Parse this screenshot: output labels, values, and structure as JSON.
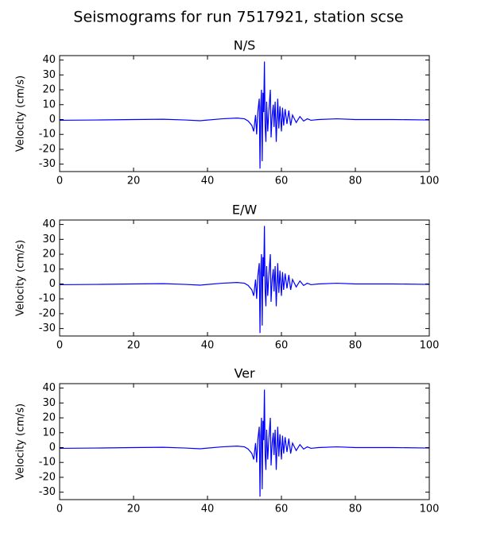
{
  "title": "Seismograms for run 7517921, station scse",
  "chart_data": [
    {
      "type": "line",
      "title": "N/S",
      "ylabel": "Velocity (cm/s)",
      "color": "#0000ff",
      "xlim": [
        0,
        100
      ],
      "xticks": [
        0,
        20,
        40,
        60,
        80,
        100
      ],
      "ylim": [
        -35,
        43
      ],
      "yticks": [
        -30,
        -20,
        -10,
        0,
        10,
        20,
        30,
        40
      ],
      "x": [
        0,
        10,
        20,
        28,
        34,
        38,
        44,
        48,
        50,
        51,
        52,
        52.5,
        53,
        53.3,
        53.6,
        54,
        54.2,
        54.4,
        54.6,
        54.8,
        55,
        55.2,
        55.4,
        55.6,
        55.8,
        56,
        56.3,
        56.6,
        57,
        57.2,
        57.5,
        57.8,
        58,
        58.3,
        58.6,
        59,
        59.3,
        59.6,
        60,
        60.3,
        60.6,
        61,
        61.5,
        62,
        62.5,
        63,
        64,
        65,
        66,
        67,
        68,
        70,
        75,
        80,
        90,
        100
      ],
      "values": [
        -0.5,
        -0.3,
        0,
        0.2,
        -0.3,
        -0.8,
        0.5,
        1,
        0.5,
        -1,
        -4,
        -8,
        3,
        -10,
        5,
        14,
        -33,
        8,
        20,
        -28,
        18,
        5,
        39,
        -5,
        -15,
        12,
        -8,
        6,
        20,
        -12,
        3,
        10,
        -5,
        12,
        -15,
        14,
        -6,
        9,
        -8,
        8,
        -4,
        7,
        -3,
        6,
        -4,
        3,
        -2,
        2,
        -1,
        0.5,
        -0.5,
        0,
        0.5,
        0,
        0,
        -0.3
      ]
    },
    {
      "type": "line",
      "title": "E/W",
      "ylabel": "Velocity (cm/s)",
      "color": "#0000ff",
      "xlim": [
        0,
        100
      ],
      "xticks": [
        0,
        20,
        40,
        60,
        80,
        100
      ],
      "ylim": [
        -35,
        43
      ],
      "yticks": [
        -30,
        -20,
        -10,
        0,
        10,
        20,
        30,
        40
      ],
      "x": [
        0,
        10,
        20,
        28,
        34,
        38,
        44,
        48,
        50,
        51,
        52,
        52.5,
        53,
        53.3,
        53.6,
        54,
        54.2,
        54.4,
        54.6,
        54.8,
        55,
        55.2,
        55.4,
        55.6,
        55.8,
        56,
        56.3,
        56.6,
        57,
        57.2,
        57.5,
        57.8,
        58,
        58.3,
        58.6,
        59,
        59.3,
        59.6,
        60,
        60.3,
        60.6,
        61,
        61.5,
        62,
        62.5,
        63,
        64,
        65,
        66,
        67,
        68,
        70,
        75,
        80,
        90,
        100
      ],
      "values": [
        -0.5,
        -0.3,
        0,
        0.2,
        -0.3,
        -0.8,
        0.5,
        1,
        0.5,
        -1,
        -4,
        -8,
        3,
        -10,
        5,
        14,
        -33,
        8,
        20,
        -28,
        18,
        5,
        39,
        -5,
        -15,
        12,
        -8,
        6,
        20,
        -12,
        3,
        10,
        -5,
        12,
        -15,
        14,
        -6,
        9,
        -8,
        8,
        -4,
        7,
        -3,
        6,
        -4,
        3,
        -2,
        2,
        -1,
        0.5,
        -0.5,
        0,
        0.5,
        0,
        0,
        -0.3
      ]
    },
    {
      "type": "line",
      "title": "Ver",
      "ylabel": "Velocity (cm/s)",
      "color": "#0000ff",
      "xlim": [
        0,
        100
      ],
      "xticks": [
        0,
        20,
        40,
        60,
        80,
        100
      ],
      "ylim": [
        -35,
        43
      ],
      "yticks": [
        -30,
        -20,
        -10,
        0,
        10,
        20,
        30,
        40
      ],
      "x": [
        0,
        10,
        20,
        28,
        34,
        38,
        44,
        48,
        50,
        51,
        52,
        52.5,
        53,
        53.3,
        53.6,
        54,
        54.2,
        54.4,
        54.6,
        54.8,
        55,
        55.2,
        55.4,
        55.6,
        55.8,
        56,
        56.3,
        56.6,
        57,
        57.2,
        57.5,
        57.8,
        58,
        58.3,
        58.6,
        59,
        59.3,
        59.6,
        60,
        60.3,
        60.6,
        61,
        61.5,
        62,
        62.5,
        63,
        64,
        65,
        66,
        67,
        68,
        70,
        75,
        80,
        90,
        100
      ],
      "values": [
        -0.5,
        -0.3,
        0,
        0.2,
        -0.3,
        -0.8,
        0.5,
        1,
        0.5,
        -1,
        -4,
        -8,
        3,
        -10,
        5,
        14,
        -33,
        8,
        20,
        -28,
        18,
        5,
        39,
        -5,
        -15,
        12,
        -8,
        6,
        20,
        -12,
        3,
        10,
        -5,
        12,
        -15,
        14,
        -6,
        9,
        -8,
        8,
        -4,
        7,
        -3,
        6,
        -4,
        3,
        -2,
        2,
        -1,
        0.5,
        -0.5,
        0,
        0.5,
        0,
        0,
        -0.3
      ]
    }
  ]
}
